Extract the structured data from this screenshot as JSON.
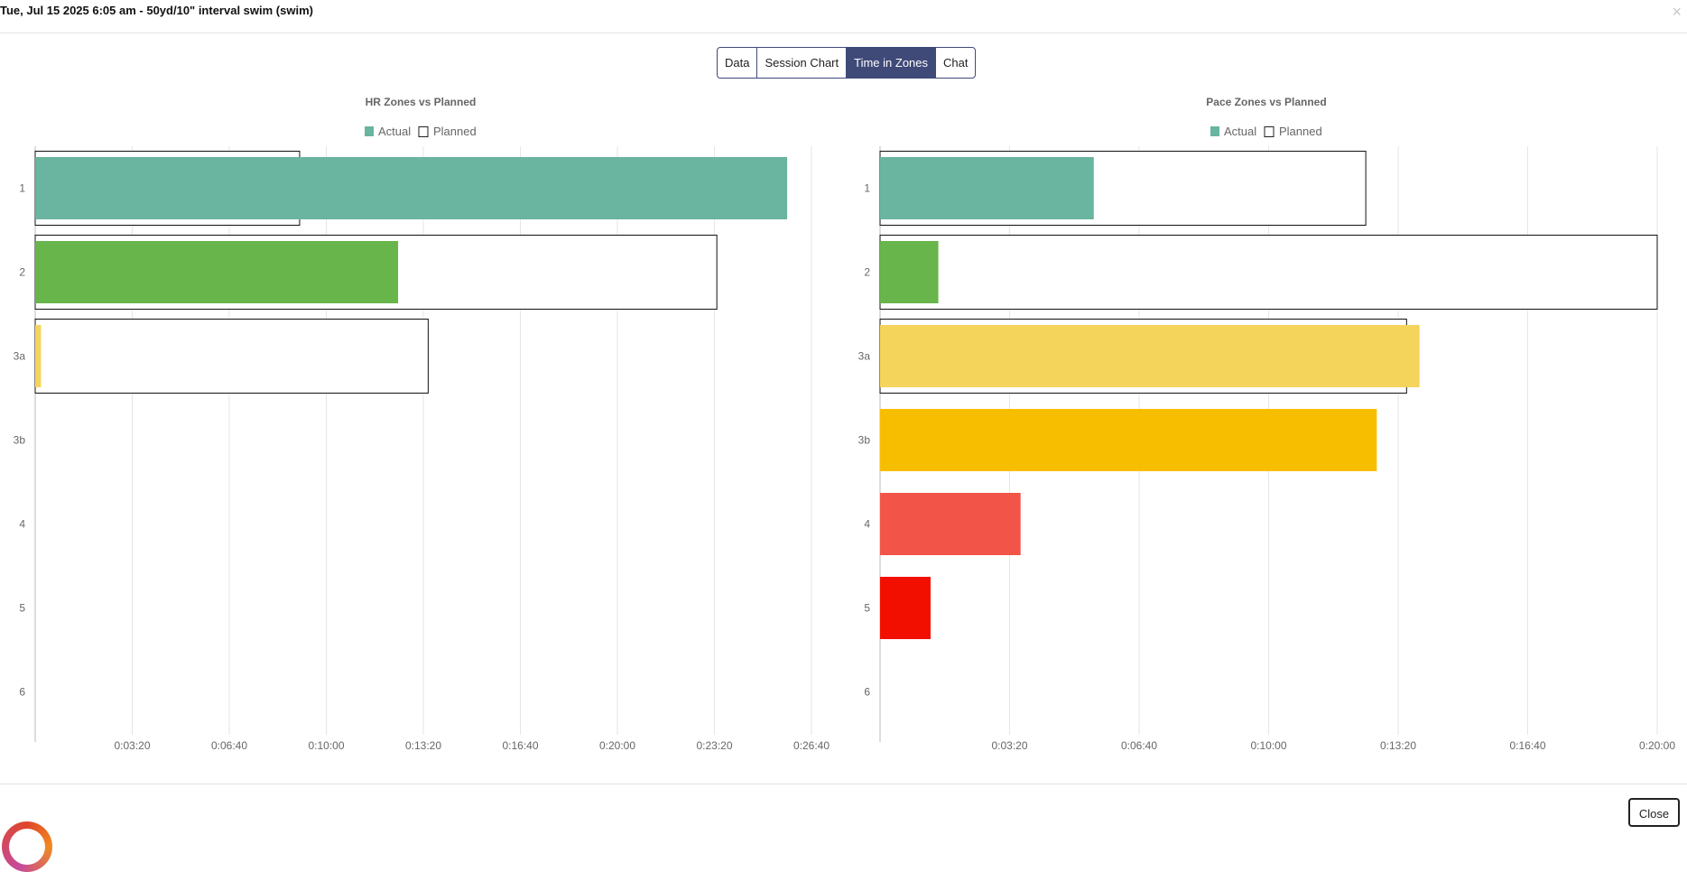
{
  "header": {
    "title": "Tue, Jul 15 2025 6:05 am - 50yd/10\" interval swim (swim)",
    "close_icon": "×"
  },
  "tabs": [
    {
      "label": "Data",
      "active": false
    },
    {
      "label": "Session Chart",
      "active": false
    },
    {
      "label": "Time in Zones",
      "active": true
    },
    {
      "label": "Chat",
      "active": false
    }
  ],
  "footer": {
    "close_label": "Close"
  },
  "colors": {
    "accent": "#3f4a79",
    "zones": [
      "#69b59f",
      "#67b54b",
      "#f4d45a",
      "#f7be00",
      "#f25548",
      "#f20f00",
      "#f2a0a0"
    ],
    "grid": "#e6e6e6"
  },
  "chart_data": [
    {
      "type": "bar",
      "orientation": "horizontal",
      "title": "HR Zones vs Planned",
      "legend": [
        "Actual",
        "Planned"
      ],
      "legend_position": "top",
      "categories": [
        "1",
        "2",
        "3a",
        "3b",
        "4",
        "5",
        "6"
      ],
      "x_unit": "seconds",
      "xlim": [
        0,
        1600
      ],
      "x_ticks": [
        200,
        400,
        600,
        800,
        1000,
        1200,
        1400,
        1600
      ],
      "x_tick_labels": [
        "0:03:20",
        "0:06:40",
        "0:10:00",
        "0:13:20",
        "0:16:40",
        "0:20:00",
        "0:23:20",
        "0:26:40"
      ],
      "grid": true,
      "series": [
        {
          "name": "Actual",
          "values": [
            1550,
            748,
            12,
            0,
            0,
            0,
            0
          ]
        },
        {
          "name": "Planned",
          "values": [
            545,
            1405,
            810,
            0,
            0,
            0,
            0
          ]
        }
      ]
    },
    {
      "type": "bar",
      "orientation": "horizontal",
      "title": "Pace Zones vs Planned",
      "legend": [
        "Actual",
        "Planned"
      ],
      "legend_position": "top",
      "categories": [
        "1",
        "2",
        "3a",
        "3b",
        "4",
        "5",
        "6"
      ],
      "x_unit": "seconds",
      "xlim": [
        0,
        1200
      ],
      "x_ticks": [
        200,
        400,
        600,
        800,
        1000,
        1200
      ],
      "x_tick_labels": [
        "0:03:20",
        "0:06:40",
        "0:10:00",
        "0:13:20",
        "0:16:40",
        "0:20:00"
      ],
      "grid": true,
      "series": [
        {
          "name": "Actual",
          "values": [
            330,
            90,
            833,
            767,
            217,
            78,
            0
          ]
        },
        {
          "name": "Planned",
          "values": [
            750,
            1200,
            813,
            0,
            0,
            0,
            0
          ]
        }
      ]
    }
  ]
}
